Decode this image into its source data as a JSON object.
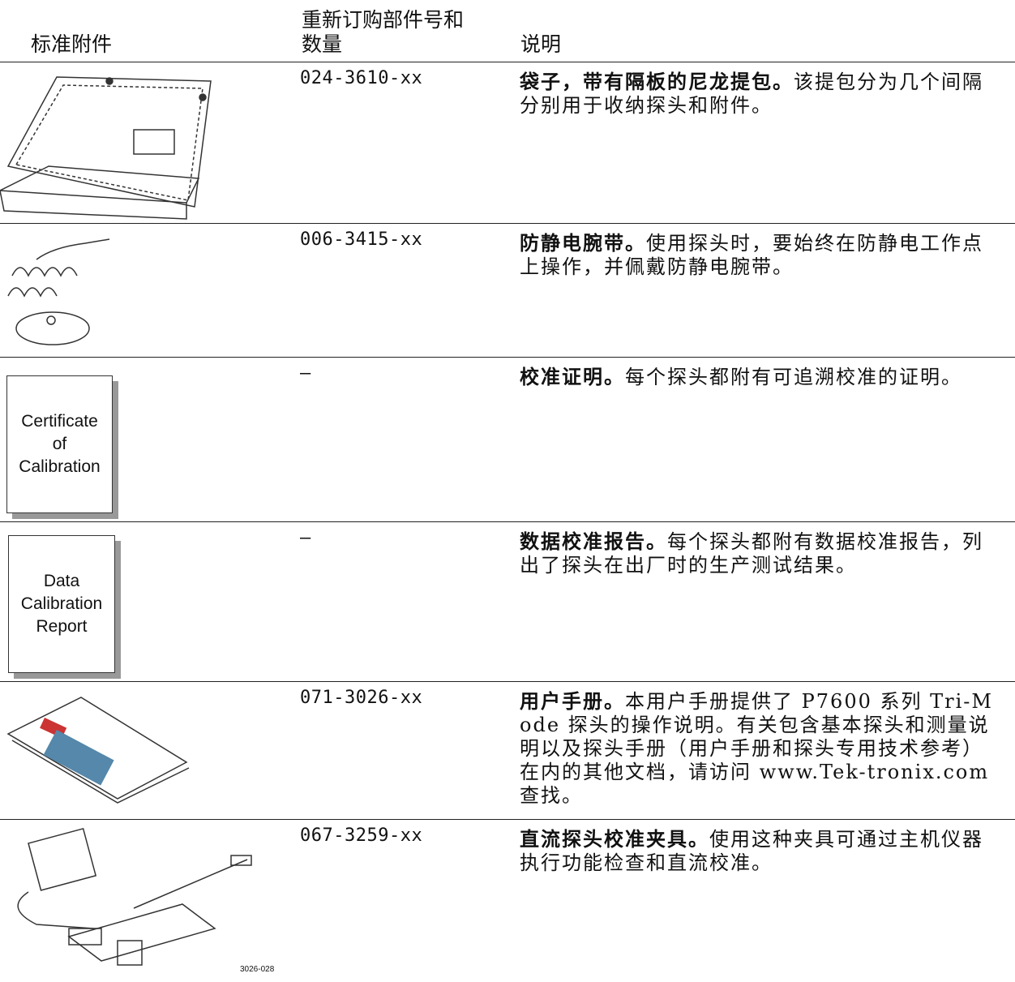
{
  "table": {
    "header": {
      "accessory": "标准附件",
      "part_number": [
        "重新订购部件号和",
        "数量"
      ],
      "description": "说明"
    },
    "rows": [
      {
        "part_number": "024-3610-xx",
        "title": "袋子，带有隔板的尼龙提包。",
        "text": "该提包分为几个间隔分别用于收纳探头和附件。"
      },
      {
        "part_number": "006-3415-xx",
        "title": "防静电腕带。",
        "text": "使用探头时，要始终在防静电工作点上操作，并佩戴防静电腕带。"
      },
      {
        "part_number": "—",
        "title": "校准证明。",
        "text": "每个探头都附有可追溯校准的证明。",
        "image_text": [
          "Certificate",
          "of",
          "Calibration"
        ]
      },
      {
        "part_number": "—",
        "title": "数据校准报告。",
        "text": "每个探头都附有数据校准报告，列出了探头在出厂时的生产测试结果。",
        "image_text": [
          "Data",
          "Calibration",
          "Report"
        ]
      },
      {
        "part_number": "071-3026-xx",
        "title": "用户手册。",
        "text": "本用户手册提供了 P7600 系列 Tri-Mode 探头的操作说明。有关包含基本探头和测量说明以及探头手册（用户手册和探头专用技术参考）在内的其他文档，请访问 www.Tek-tronix.com 查找。"
      },
      {
        "part_number": "067-3259-xx",
        "title": "直流探头校准夹具。",
        "text": "使用这种夹具可通过主机仪器执行功能检查和直流校准。",
        "image_text": [
          "3026-028"
        ]
      }
    ]
  }
}
